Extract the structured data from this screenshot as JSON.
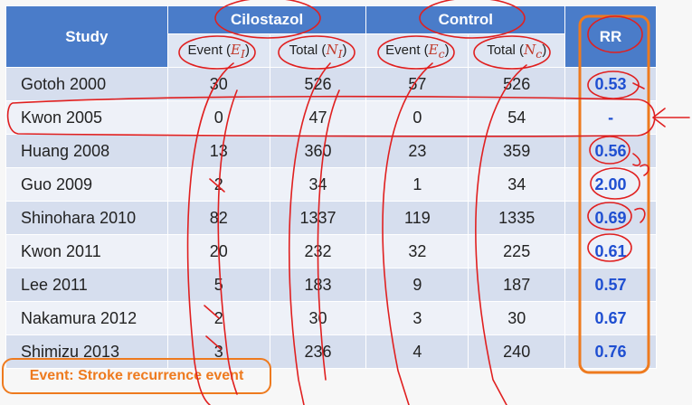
{
  "table": {
    "header": {
      "study": "Study",
      "cilostazol": "Cilostazol",
      "control": "Control",
      "rr": "RR",
      "event_label": "Event (",
      "event_symbol_cil": "E",
      "event_sub_cil": "I",
      "total_label": "Total (",
      "total_symbol_cil": "N",
      "total_sub_cil": "I",
      "event_symbol_ctl": "E",
      "event_sub_ctl": "c",
      "total_symbol_ctl": "N",
      "total_sub_ctl": "c",
      "close_paren": ")"
    },
    "rows": [
      {
        "study": "Gotoh 2000",
        "e1": "30",
        "n1": "526",
        "ec": "57",
        "nc": "526",
        "rr": "0.53"
      },
      {
        "study": "Kwon 2005",
        "e1": "0",
        "n1": "47",
        "ec": "0",
        "nc": "54",
        "rr": "-"
      },
      {
        "study": "Huang 2008",
        "e1": "13",
        "n1": "360",
        "ec": "23",
        "nc": "359",
        "rr": "0.56"
      },
      {
        "study": "Guo 2009",
        "e1": "2",
        "n1": "34",
        "ec": "1",
        "nc": "34",
        "rr": "2.00"
      },
      {
        "study": "Shinohara 2010",
        "e1": "82",
        "n1": "1337",
        "ec": "119",
        "nc": "1335",
        "rr": "0.69"
      },
      {
        "study": "Kwon 2011",
        "e1": "20",
        "n1": "232",
        "ec": "32",
        "nc": "225",
        "rr": "0.61"
      },
      {
        "study": "Lee 2011",
        "e1": "5",
        "n1": "183",
        "ec": "9",
        "nc": "187",
        "rr": "0.57"
      },
      {
        "study": "Nakamura 2012",
        "e1": "2",
        "n1": "30",
        "ec": "3",
        "nc": "30",
        "rr": "0.67"
      },
      {
        "study": "Shimizu 2013",
        "e1": "3",
        "n1": "236",
        "ec": "4",
        "nc": "240",
        "rr": "0.76"
      }
    ]
  },
  "footnote": "Event: Stroke recurrence event",
  "colors": {
    "header_bg": "#4a7cc9",
    "rr_text": "#1f4fd1",
    "annotation_red": "#e02020",
    "highlight_orange": "#ee7a1e"
  }
}
